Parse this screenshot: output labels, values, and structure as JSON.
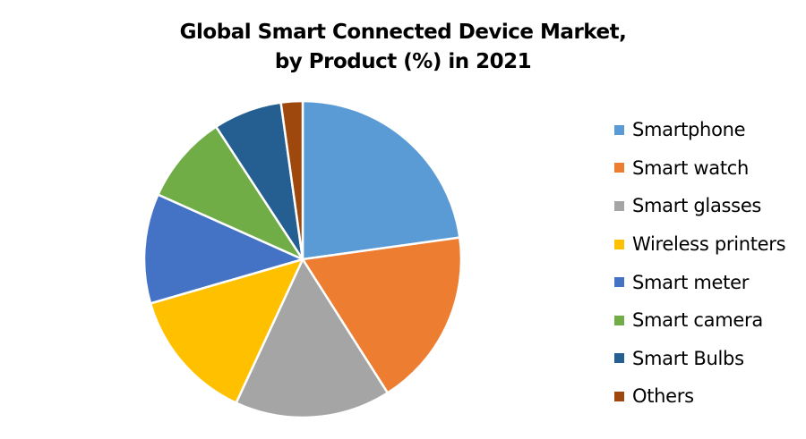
{
  "chart_data": {
    "type": "pie",
    "title": "Global Smart Connected Device Market, by Product (%) in 2021",
    "title_lines": [
      "Global Smart Connected Device Market,",
      "by Product (%) in 2021"
    ],
    "legend_position": "right",
    "start_angle_deg": 0,
    "direction": "clockwise",
    "categories": [
      "Smartphone",
      "Smart watch",
      "Smart glasses",
      "Wireless printers",
      "Smart meter",
      "Smart camera",
      "Smart Bulbs",
      "Others"
    ],
    "values": [
      22.8,
      18.2,
      15.9,
      13.6,
      11.2,
      9.1,
      7.0,
      2.2
    ],
    "colors": [
      "#5B9BD5",
      "#ED7D31",
      "#A5A5A5",
      "#FFC000",
      "#4472C4",
      "#70AD47",
      "#255E91",
      "#9E480E"
    ],
    "data_labels": false
  }
}
